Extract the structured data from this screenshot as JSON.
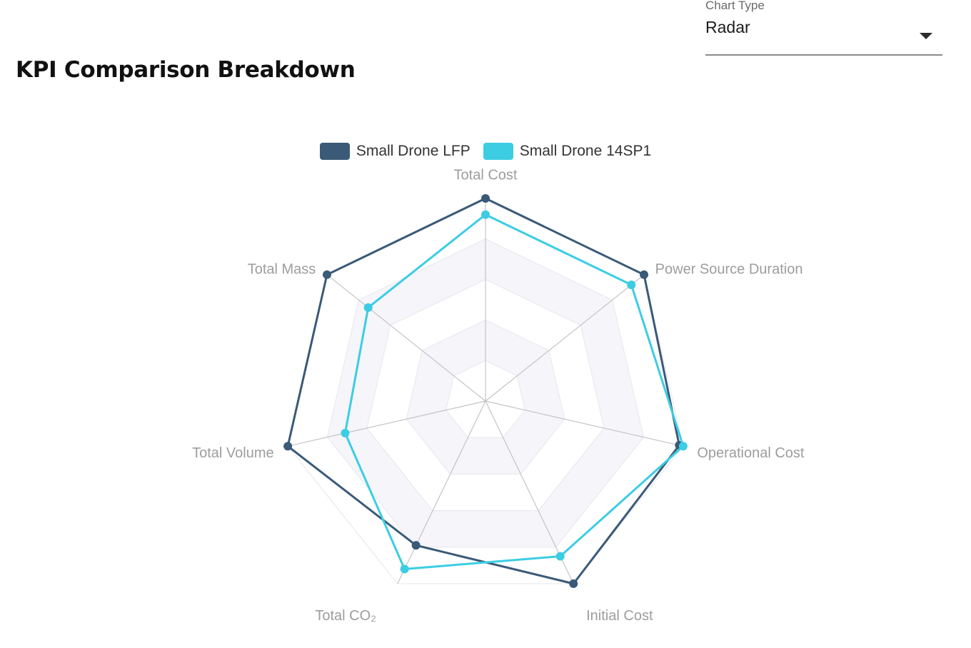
{
  "header": {
    "title": "KPI Comparison Breakdown"
  },
  "chart_type_select": {
    "label": "Chart Type",
    "value": "Radar",
    "arrow_icon": "caret-down-icon"
  },
  "chart_data": {
    "type": "radar",
    "title": "",
    "axes": [
      "Total Cost",
      "Power Source Duration",
      "Operational Cost",
      "Initial Cost",
      "Total CO₂",
      "Total Volume",
      "Total Mass"
    ],
    "levels": 5,
    "max": 100,
    "legend_position": "top-center",
    "series": [
      {
        "name": "Small Drone LFP",
        "color": "#3a5a78",
        "values": [
          100,
          100,
          98,
          100,
          79,
          100,
          100
        ]
      },
      {
        "name": "Small Drone 14SP1",
        "color": "#3ccde3",
        "values": [
          92,
          92,
          100,
          85,
          92,
          71,
          74
        ]
      }
    ]
  }
}
